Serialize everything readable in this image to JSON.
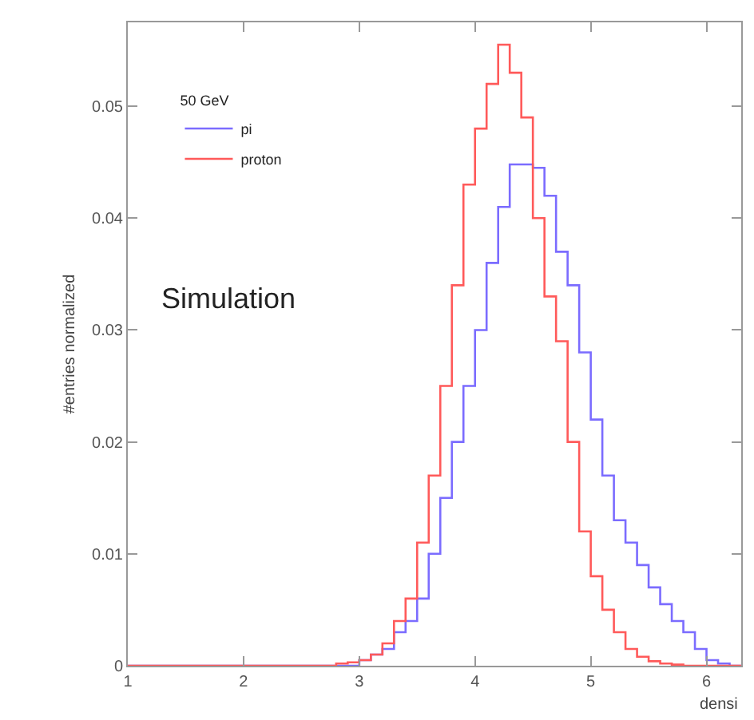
{
  "chart_data": {
    "type": "histogram",
    "xlabel": "densi",
    "ylabel": "#entries normalized",
    "legend_title": "50 GeV",
    "bins": [
      1.0,
      1.1,
      1.2,
      1.3,
      1.4,
      1.5,
      1.6,
      1.7,
      1.8,
      1.9,
      2.0,
      2.1,
      2.2,
      2.3,
      2.4,
      2.5,
      2.6,
      2.7,
      2.8,
      2.9,
      3.0,
      3.1,
      3.2,
      3.3,
      3.4,
      3.5,
      3.6,
      3.7,
      3.8,
      3.9,
      4.0,
      4.1,
      4.2,
      4.3,
      4.4,
      4.5,
      4.6,
      4.7,
      4.8,
      4.9,
      5.0,
      5.1,
      5.2,
      5.3,
      5.4,
      5.5,
      5.6,
      5.7,
      5.8,
      5.9,
      6.0,
      6.1,
      6.2,
      6.3
    ],
    "series": [
      {
        "name": "pi",
        "color": "#7b6cff",
        "values": [
          0,
          0,
          0,
          0,
          0,
          0,
          0,
          0,
          0,
          0,
          0,
          0,
          0,
          0,
          0,
          0,
          0,
          0,
          0,
          0,
          0.0005,
          0.001,
          0.0015,
          0.003,
          0.004,
          0.006,
          0.01,
          0.015,
          0.02,
          0.025,
          0.03,
          0.036,
          0.041,
          0.0448,
          0.0448,
          0.0445,
          0.042,
          0.037,
          0.034,
          0.028,
          0.022,
          0.017,
          0.013,
          0.011,
          0.009,
          0.007,
          0.0055,
          0.004,
          0.003,
          0.0015,
          0.0005,
          0.0002,
          0
        ]
      },
      {
        "name": "proton",
        "color": "#ff5a5a",
        "values": [
          0,
          0,
          0,
          0,
          0,
          0,
          0,
          0,
          0,
          0,
          0,
          0,
          0,
          0,
          0,
          0,
          0,
          0,
          0.0002,
          0.0003,
          0.0005,
          0.001,
          0.002,
          0.004,
          0.006,
          0.011,
          0.017,
          0.025,
          0.034,
          0.043,
          0.048,
          0.052,
          0.0555,
          0.053,
          0.049,
          0.04,
          0.033,
          0.029,
          0.02,
          0.012,
          0.008,
          0.005,
          0.003,
          0.0015,
          0.0008,
          0.0004,
          0.0002,
          0.0001,
          0,
          0,
          0,
          0,
          0
        ]
      }
    ],
    "xlim": [
      1,
      6.3
    ],
    "xticks": [
      1,
      2,
      3,
      4,
      5,
      6
    ],
    "ylim": [
      0,
      0.0575
    ],
    "yticks": [
      0,
      0.01,
      0.02,
      0.03,
      0.04,
      0.05
    ],
    "legend": "top left",
    "annotations": [
      "Simulation"
    ]
  }
}
